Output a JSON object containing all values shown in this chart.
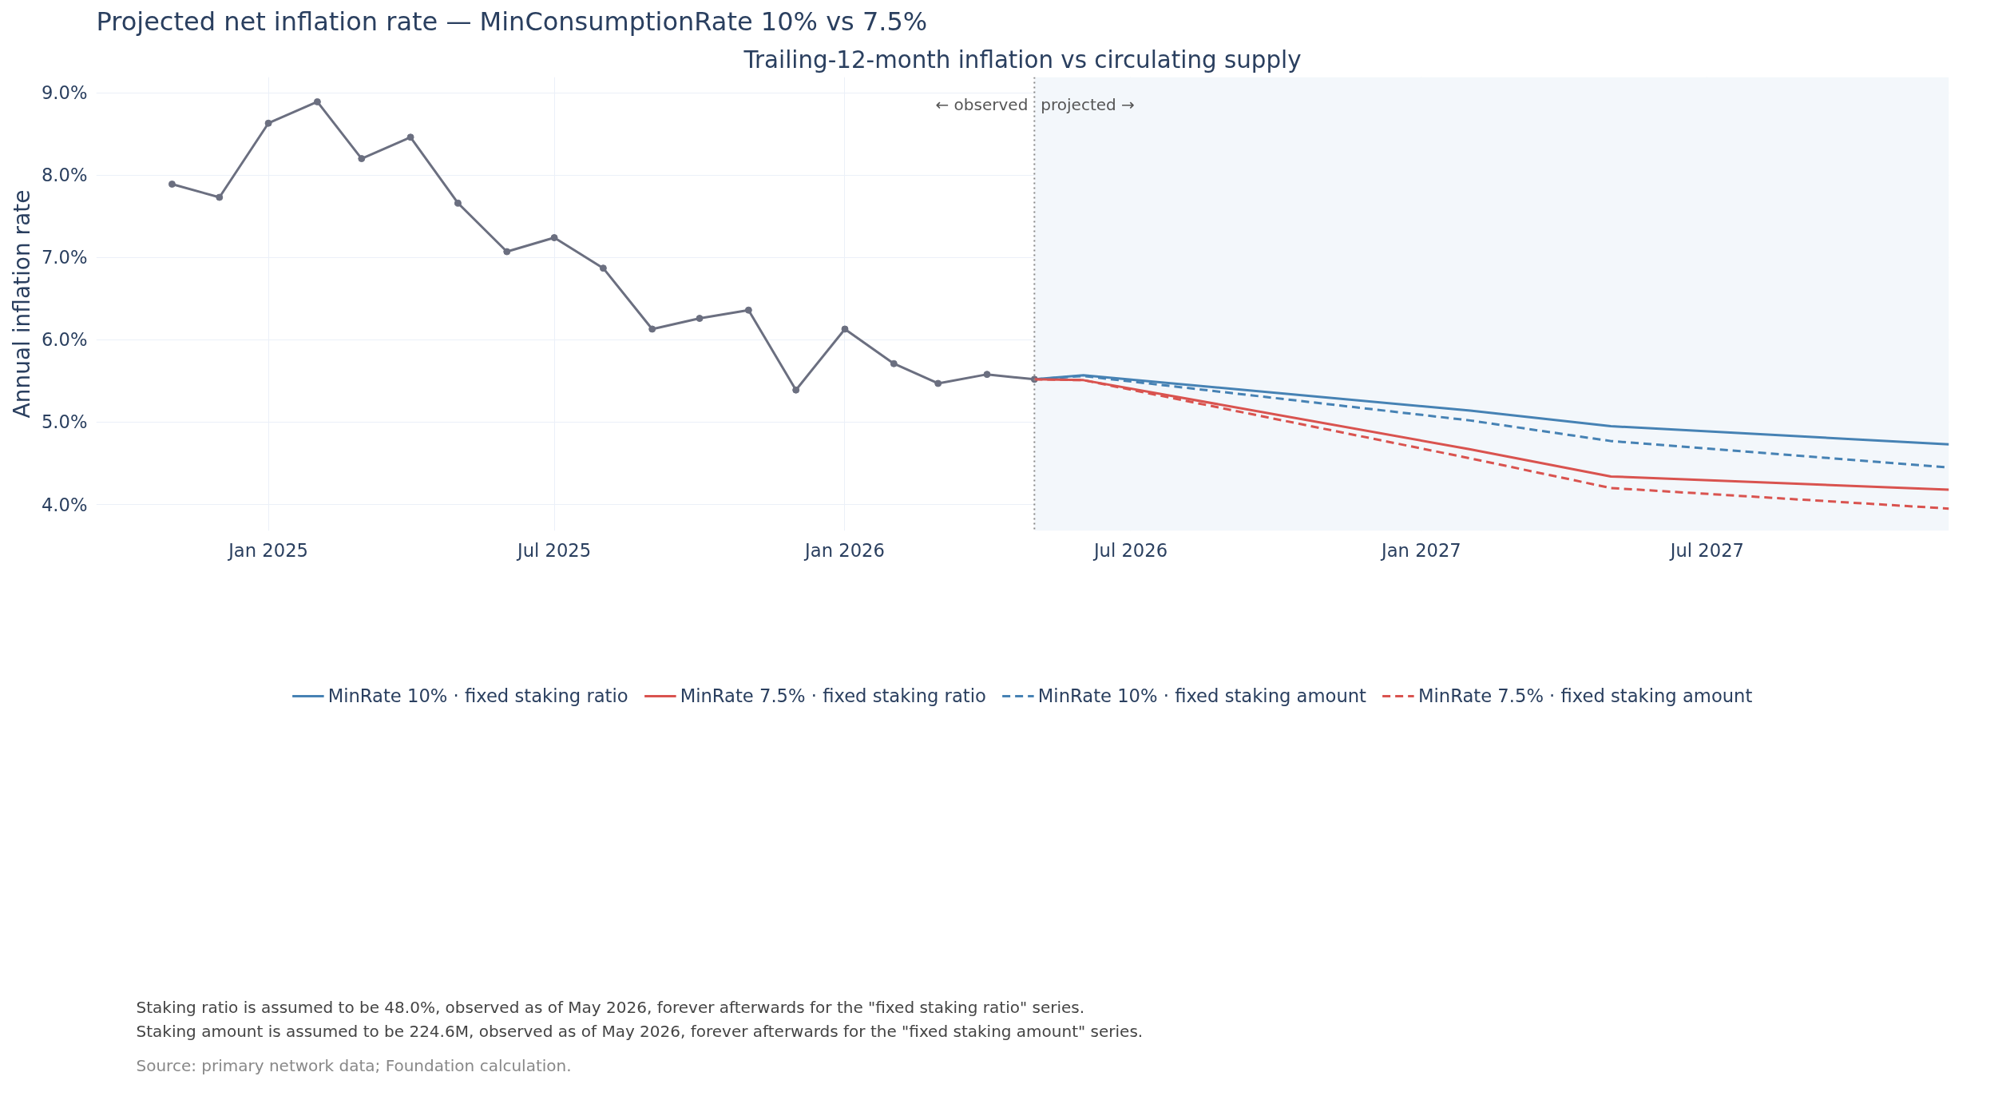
{
  "chart_data": {
    "type": "line",
    "title": "Projected net inflation rate — MinConsumptionRate 10% vs 7.5%",
    "subtitle": "Trailing-12-month inflation vs circulating supply",
    "ylabel": "Annual inflation rate",
    "xlim": [
      "2024-09-14",
      "2027-12-01"
    ],
    "ylim": [
      3.68,
      9.19
    ],
    "xticks": [
      {
        "value": "2025-01-01",
        "label": "Jan 2025"
      },
      {
        "value": "2025-07-01",
        "label": "Jul 2025"
      },
      {
        "value": "2026-01-01",
        "label": "Jan 2026"
      },
      {
        "value": "2026-07-01",
        "label": "Jul 2026"
      },
      {
        "value": "2027-01-01",
        "label": "Jan 2027"
      },
      {
        "value": "2027-07-01",
        "label": "Jul 2027"
      }
    ],
    "yticks": [
      {
        "value": 4,
        "label": "4.0%"
      },
      {
        "value": 5,
        "label": "5.0%"
      },
      {
        "value": 6,
        "label": "6.0%"
      },
      {
        "value": 7,
        "label": "7.0%"
      },
      {
        "value": 8,
        "label": "8.0%"
      },
      {
        "value": 9,
        "label": "9.0%"
      }
    ],
    "grid": true,
    "legend": "bottom",
    "series": [
      {
        "color": "#6b6f80",
        "marker": "circle",
        "line_style": "solid",
        "x": [
          "2024-11-01",
          "2024-12-01",
          "2025-01-01",
          "2025-02-01",
          "2025-03-01",
          "2025-04-01",
          "2025-05-01",
          "2025-06-01",
          "2025-07-01",
          "2025-08-01",
          "2025-09-01",
          "2025-10-01",
          "2025-11-01",
          "2025-12-01",
          "2026-01-01",
          "2026-02-01",
          "2026-03-01",
          "2026-04-01",
          "2026-05-01"
        ],
        "values": [
          7.89,
          7.73,
          8.63,
          8.89,
          8.2,
          8.46,
          7.66,
          7.07,
          7.24,
          6.87,
          6.13,
          6.26,
          6.36,
          5.39,
          6.13,
          5.71,
          5.47,
          5.58,
          5.52
        ]
      },
      {
        "name": "MinRate 10% · fixed staking ratio",
        "color": "#4682b4",
        "marker": "none",
        "line_style": "solid",
        "x": [
          "2026-05-01",
          "2026-06-01",
          "2027-02-01",
          "2027-05-01",
          "2027-12-01"
        ],
        "values": [
          5.52,
          5.57,
          5.14,
          4.95,
          4.73
        ]
      },
      {
        "name": "MinRate 7.5% · fixed staking ratio",
        "color": "#d9534f",
        "marker": "none",
        "line_style": "solid",
        "x": [
          "2026-05-01",
          "2026-06-01",
          "2027-02-01",
          "2027-05-01",
          "2027-12-01"
        ],
        "values": [
          5.52,
          5.51,
          4.67,
          4.34,
          4.18
        ]
      },
      {
        "name": "MinRate 10% · fixed staking amount",
        "color": "#4682b4",
        "marker": "none",
        "line_style": "dashed",
        "x": [
          "2026-05-01",
          "2026-06-01",
          "2027-02-01",
          "2027-05-01",
          "2027-12-01"
        ],
        "values": [
          5.52,
          5.56,
          5.02,
          4.77,
          4.45
        ]
      },
      {
        "name": "MinRate 7.5% · fixed staking amount",
        "color": "#d9534f",
        "marker": "none",
        "line_style": "dashed",
        "x": [
          "2026-05-01",
          "2026-06-01",
          "2027-02-01",
          "2027-05-01",
          "2027-12-01"
        ],
        "values": [
          5.52,
          5.51,
          4.56,
          4.2,
          3.95
        ]
      }
    ],
    "ref_lines": [
      {
        "axis": "x",
        "value": "2026-05-01",
        "label": "← observed",
        "color": "#888888",
        "line_style": "dotted"
      }
    ],
    "bands": [
      {
        "axis": "x",
        "from": "2026-05-01",
        "to": "2027-12-01",
        "label": "projected →",
        "color": "#f3f7fb"
      }
    ],
    "annotations": [
      "Staking ratio is assumed to be 48.0%, observed as of May 2026, forever afterwards for the \"fixed staking ratio\" series.",
      "Staking amount is assumed to be 224.6M, observed as of May 2026, forever afterwards for the \"fixed staking amount\" series.",
      "Source: primary network data; Foundation calculation."
    ]
  }
}
